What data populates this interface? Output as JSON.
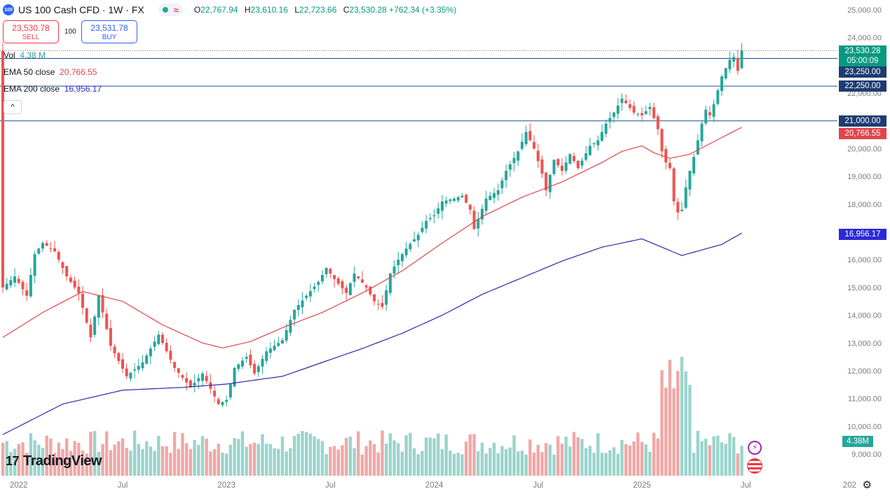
{
  "header": {
    "symbol_badge": "100",
    "title": "US 100 Cash CFD · 1W · FX",
    "wave_glyph": "≈",
    "ohlc": [
      {
        "key": "O",
        "value": "22,767.94"
      },
      {
        "key": "H",
        "value": "23,610.16"
      },
      {
        "key": "L",
        "value": "22,723.66"
      },
      {
        "key": "C",
        "value": "23,530.28 +762.34 (+3.35%)"
      }
    ]
  },
  "trade": {
    "sell_price": "23,530.78",
    "sell_label": "SELL",
    "quantity": "100",
    "buy_price": "23,531.78",
    "buy_label": "BUY"
  },
  "indicators": {
    "vol_label": "Vol",
    "vol_value": "4.38 M",
    "ema50_label": "EMA 50 close",
    "ema50_value": "20,766.55",
    "ema200_label": "EMA 200 close",
    "ema200_value": "16,956.17",
    "collapse_glyph": "^"
  },
  "price_tags": {
    "last_price": "23,530.28",
    "countdown": "05:00:09",
    "level_high": "23,250.00",
    "level_mid": "22,250.00",
    "level_low": "21,000.00",
    "ema50": "20,766.55",
    "ema200": "16,956.17",
    "volume": "4.38M"
  },
  "branding": {
    "logo_mark": "17",
    "logo_text": "TradingView",
    "gear_glyph": "⚙",
    "flash_glyph": "⚡"
  },
  "colors": {
    "up": "#26a69a",
    "down": "#ef5350",
    "ema50": "#e0454a",
    "ema200": "#2a2aa8",
    "level_line": "#1c4f8f",
    "last_price_tag": "#089981",
    "level_tag": "#1e3c72",
    "ema200_tag": "#2a2ad6"
  },
  "chart_data": {
    "type": "candlestick",
    "timeframe": "1W",
    "y_ticks": [
      9000,
      10000,
      11000,
      12000,
      13000,
      14000,
      15000,
      16000,
      17000,
      18000,
      19000,
      20000,
      21000,
      22000,
      23000,
      24000,
      25000
    ],
    "y_tick_labels": [
      "9,000.00",
      "10,000.00",
      "11,000.00",
      "12,000.00",
      "13,000.00",
      "14,000.00",
      "15,000.00",
      "16,000.00",
      "17,000.00",
      "18,000.00",
      "19,000.00",
      "20,000.00",
      "21,000.00",
      "22,000.00",
      "23,000.00",
      "24,000.00",
      "25,000.00"
    ],
    "ylim": [
      8500,
      25400
    ],
    "x_tick_labels": [
      "2022",
      "Jul",
      "2023",
      "Jul",
      "2024",
      "Jul",
      "2025",
      "Jul",
      "202"
    ],
    "x_tick_week": [
      4,
      30,
      56,
      82,
      108,
      134,
      160,
      186,
      212
    ],
    "horizontal_levels": [
      23250,
      22250,
      21000
    ],
    "dotted_last_price": 23530.28,
    "ema50_anchors": [
      [
        0,
        13200
      ],
      [
        10,
        14100
      ],
      [
        20,
        14850
      ],
      [
        30,
        14500
      ],
      [
        40,
        13650
      ],
      [
        50,
        13000
      ],
      [
        55,
        12820
      ],
      [
        62,
        13050
      ],
      [
        70,
        13550
      ],
      [
        80,
        14100
      ],
      [
        90,
        14800
      ],
      [
        100,
        15600
      ],
      [
        110,
        16600
      ],
      [
        120,
        17550
      ],
      [
        130,
        18250
      ],
      [
        140,
        18800
      ],
      [
        150,
        19500
      ],
      [
        155,
        19900
      ],
      [
        160,
        20100
      ],
      [
        163,
        19850
      ],
      [
        167,
        19650
      ],
      [
        172,
        19800
      ],
      [
        180,
        20400
      ],
      [
        185,
        20766.55
      ]
    ],
    "ema200_anchors": [
      [
        0,
        9700
      ],
      [
        15,
        10800
      ],
      [
        30,
        11300
      ],
      [
        45,
        11400
      ],
      [
        56,
        11520
      ],
      [
        70,
        11800
      ],
      [
        80,
        12300
      ],
      [
        90,
        12800
      ],
      [
        100,
        13350
      ],
      [
        110,
        14000
      ],
      [
        120,
        14750
      ],
      [
        130,
        15350
      ],
      [
        140,
        15950
      ],
      [
        150,
        16450
      ],
      [
        160,
        16750
      ],
      [
        170,
        16150
      ],
      [
        180,
        16550
      ],
      [
        185,
        16956.17
      ]
    ],
    "close_anchors": [
      [
        0,
        15000
      ],
      [
        3,
        15400
      ],
      [
        6,
        14700
      ],
      [
        8,
        16200
      ],
      [
        10,
        16600
      ],
      [
        13,
        16300
      ],
      [
        16,
        15400
      ],
      [
        19,
        14800
      ],
      [
        22,
        13200
      ],
      [
        24,
        14700
      ],
      [
        27,
        12900
      ],
      [
        31,
        11800
      ],
      [
        35,
        12300
      ],
      [
        39,
        13300
      ],
      [
        43,
        12100
      ],
      [
        47,
        11400
      ],
      [
        50,
        11900
      ],
      [
        54,
        10800
      ],
      [
        56,
        10950
      ],
      [
        58,
        12100
      ],
      [
        61,
        12500
      ],
      [
        63,
        11900
      ],
      [
        66,
        12700
      ],
      [
        70,
        13100
      ],
      [
        73,
        14200
      ],
      [
        76,
        14700
      ],
      [
        79,
        15200
      ],
      [
        81,
        15700
      ],
      [
        83,
        15300
      ],
      [
        86,
        14800
      ],
      [
        88,
        15500
      ],
      [
        91,
        15000
      ],
      [
        93,
        14500
      ],
      [
        95,
        14300
      ],
      [
        97,
        15500
      ],
      [
        99,
        16000
      ],
      [
        101,
        16400
      ],
      [
        104,
        16900
      ],
      [
        106,
        17400
      ],
      [
        108,
        17600
      ],
      [
        110,
        18100
      ],
      [
        113,
        18200
      ],
      [
        115,
        18300
      ],
      [
        117,
        17800
      ],
      [
        118,
        17100
      ],
      [
        121,
        18200
      ],
      [
        124,
        18500
      ],
      [
        126,
        19200
      ],
      [
        129,
        19900
      ],
      [
        131,
        20600
      ],
      [
        133,
        20000
      ],
      [
        135,
        19100
      ],
      [
        136,
        18500
      ],
      [
        138,
        19600
      ],
      [
        140,
        19200
      ],
      [
        142,
        19800
      ],
      [
        144,
        19300
      ],
      [
        147,
        20100
      ],
      [
        149,
        20300
      ],
      [
        151,
        20900
      ],
      [
        153,
        21300
      ],
      [
        155,
        21800
      ],
      [
        158,
        21300
      ],
      [
        160,
        21200
      ],
      [
        162,
        21500
      ],
      [
        164,
        20700
      ],
      [
        165,
        19900
      ],
      [
        166,
        19500
      ],
      [
        167,
        19300
      ],
      [
        168,
        18100
      ],
      [
        169,
        17700
      ],
      [
        170,
        17800
      ],
      [
        171,
        18600
      ],
      [
        172,
        19200
      ],
      [
        173,
        19700
      ],
      [
        174,
        20300
      ],
      [
        175,
        20900
      ],
      [
        176,
        21400
      ],
      [
        177,
        21200
      ],
      [
        178,
        21600
      ],
      [
        179,
        22100
      ],
      [
        180,
        22600
      ],
      [
        181,
        22900
      ],
      [
        182,
        23200
      ],
      [
        183,
        23300
      ],
      [
        184,
        22800
      ],
      [
        185,
        23530.28
      ]
    ],
    "volume_scale": [
      0,
      10
    ],
    "weeks": 186
  }
}
